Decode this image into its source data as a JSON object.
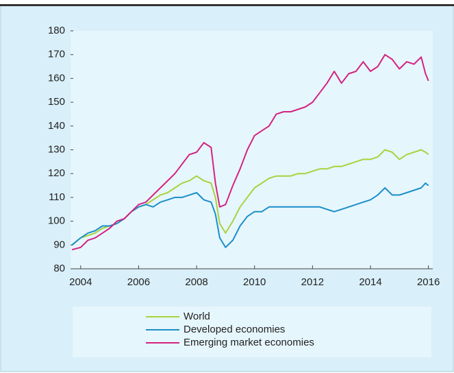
{
  "chart_data": {
    "type": "line",
    "x": [
      2003.7,
      2004.0,
      2004.25,
      2004.5,
      2004.75,
      2005.0,
      2005.25,
      2005.5,
      2005.75,
      2006.0,
      2006.25,
      2006.5,
      2006.75,
      2007.0,
      2007.25,
      2007.5,
      2007.75,
      2008.0,
      2008.25,
      2008.5,
      2008.65,
      2008.8,
      2009.0,
      2009.25,
      2009.5,
      2009.75,
      2010.0,
      2010.25,
      2010.5,
      2010.75,
      2011.0,
      2011.25,
      2011.5,
      2011.75,
      2012.0,
      2012.25,
      2012.5,
      2012.75,
      2013.0,
      2013.25,
      2013.5,
      2013.75,
      2014.0,
      2014.25,
      2014.5,
      2014.75,
      2015.0,
      2015.25,
      2015.5,
      2015.75,
      2015.9,
      2016.0
    ],
    "series": [
      {
        "name": "World",
        "color": "#a9d23c",
        "values": [
          90,
          93,
          94,
          95,
          97,
          98,
          99,
          101,
          104,
          106,
          107,
          109,
          111,
          112,
          114,
          116,
          117,
          119,
          117,
          116,
          110,
          99,
          95,
          100,
          106,
          110,
          114,
          116,
          118,
          119,
          119,
          119,
          120,
          120,
          121,
          122,
          122,
          123,
          123,
          124,
          125,
          126,
          126,
          127,
          130,
          129,
          126,
          128,
          129,
          130,
          129,
          128
        ]
      },
      {
        "name": "Developed economies",
        "color": "#1b8ec9",
        "values": [
          90,
          93,
          95,
          96,
          98,
          98,
          99,
          101,
          104,
          106,
          107,
          106,
          108,
          109,
          110,
          110,
          111,
          112,
          109,
          108,
          103,
          93,
          89,
          92,
          98,
          102,
          104,
          104,
          106,
          106,
          106,
          106,
          106,
          106,
          106,
          106,
          105,
          104,
          105,
          106,
          107,
          108,
          109,
          111,
          114,
          111,
          111,
          112,
          113,
          114,
          116,
          115
        ]
      },
      {
        "name": "Emerging market economies",
        "color": "#d42280",
        "values": [
          88,
          89,
          92,
          93,
          95,
          97,
          100,
          101,
          104,
          107,
          108,
          111,
          114,
          117,
          120,
          124,
          128,
          129,
          133,
          131,
          116,
          106,
          107,
          115,
          122,
          130,
          136,
          138,
          140,
          145,
          146,
          146,
          147,
          148,
          150,
          154,
          158,
          163,
          158,
          162,
          163,
          167,
          163,
          165,
          170,
          168,
          164,
          167,
          166,
          169,
          162,
          159
        ]
      }
    ],
    "xlim": [
      2003.65,
      2016.15
    ],
    "xticks": [
      2004,
      2006,
      2008,
      2010,
      2012,
      2014,
      2016
    ],
    "ylim": [
      80,
      180
    ],
    "yticks": [
      80,
      90,
      100,
      110,
      120,
      130,
      140,
      150,
      160,
      170,
      180
    ]
  }
}
